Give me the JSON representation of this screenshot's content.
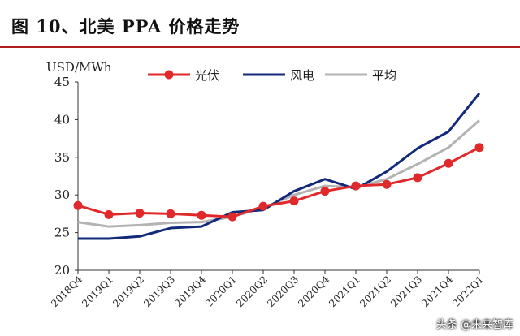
{
  "title": "图 10、北美 PPA 价格走势",
  "watermark": "头条 @未来智库",
  "chart_data": {
    "type": "line",
    "ylabel": "USD/MWh",
    "ylim": [
      20,
      45
    ],
    "yticks": [
      20,
      25,
      30,
      35,
      40,
      45
    ],
    "categories": [
      "2018Q4",
      "2019Q1",
      "2019Q2",
      "2019Q3",
      "2019Q4",
      "2020Q1",
      "2020Q2",
      "2020Q3",
      "2020Q4",
      "2021Q1",
      "2021Q2",
      "2021Q3",
      "2021Q4",
      "2022Q1"
    ],
    "legend_position": "top",
    "series": [
      {
        "name": "光伏",
        "color": "#e0292b",
        "marker": true,
        "values": [
          28.6,
          27.4,
          27.6,
          27.5,
          27.3,
          27.1,
          28.5,
          29.2,
          30.5,
          31.2,
          31.4,
          32.3,
          34.2,
          36.3
        ]
      },
      {
        "name": "风电",
        "color": "#132a7a",
        "marker": false,
        "values": [
          24.2,
          24.2,
          24.5,
          25.6,
          25.8,
          27.7,
          28.0,
          30.5,
          32.1,
          30.8,
          33.1,
          36.2,
          38.4,
          43.5
        ]
      },
      {
        "name": "平均",
        "color": "#b3b3b3",
        "marker": false,
        "values": [
          26.4,
          25.8,
          26.0,
          26.3,
          26.4,
          27.1,
          28.3,
          30.0,
          31.2,
          31.0,
          32.1,
          34.1,
          36.3,
          39.9
        ]
      }
    ]
  }
}
